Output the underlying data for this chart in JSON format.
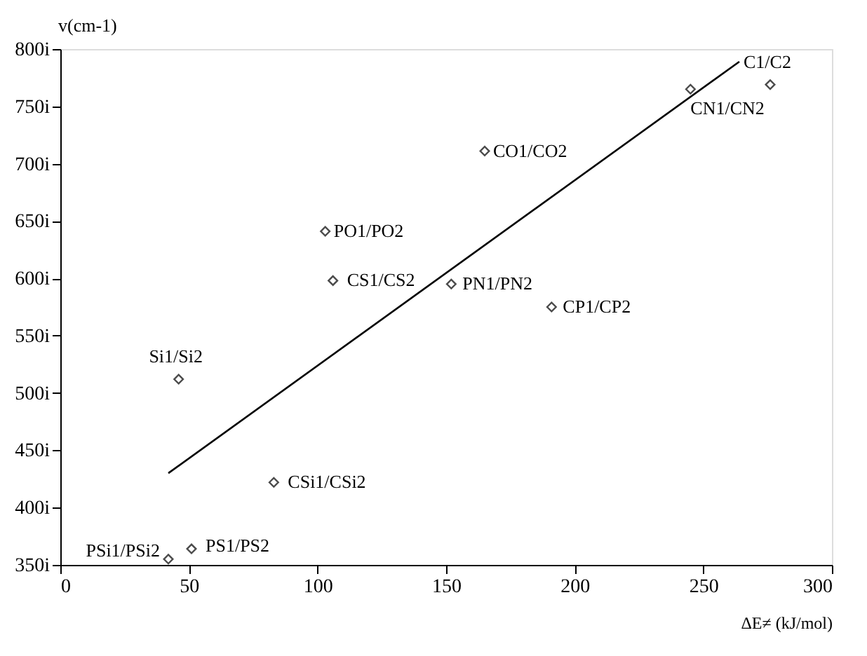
{
  "chart_data": {
    "type": "scatter",
    "xlabel": "ΔE≠ (kJ/mol)",
    "ylabel": "v(cm-1)",
    "xlim": [
      0,
      300
    ],
    "xticks": [
      0,
      50,
      100,
      150,
      200,
      250,
      300
    ],
    "ylim": [
      350,
      800
    ],
    "yticks": [
      {
        "value": 350,
        "label": "350i"
      },
      {
        "value": 400,
        "label": "400i"
      },
      {
        "value": 450,
        "label": "450i"
      },
      {
        "value": 500,
        "label": "500i"
      },
      {
        "value": 550,
        "label": "550i"
      },
      {
        "value": 600,
        "label": "600i"
      },
      {
        "value": 650,
        "label": "650i"
      },
      {
        "value": 700,
        "label": "700i"
      },
      {
        "value": 750,
        "label": "750i"
      },
      {
        "value": 800,
        "label": "800i"
      }
    ],
    "grid": false,
    "marker": "diamond",
    "series": [
      {
        "color": "#000000",
        "x": [
          103,
          106,
          165,
          245,
          276,
          152,
          191,
          46,
          83,
          42,
          51
        ],
        "values": [
          641,
          598,
          711,
          765,
          769,
          595,
          575,
          512,
          422,
          355,
          364
        ]
      },
      {
        "type": "line",
        "color": "#000000",
        "line_style": "solid",
        "marker": "none",
        "x": [
          42,
          264
        ],
        "values": [
          430,
          789
        ]
      }
    ],
    "annotations": [
      {
        "text": "PO1/PO2",
        "x": 103,
        "y": 641
      },
      {
        "text": "CS1/CS2",
        "x": 106,
        "y": 598
      },
      {
        "text": "CO1/CO2",
        "x": 165,
        "y": 711
      },
      {
        "text": "CN1/CN2",
        "x": 245,
        "y": 765
      },
      {
        "text": "C1/C2",
        "x": 276,
        "y": 769
      },
      {
        "text": "PN1/PN2",
        "x": 152,
        "y": 595
      },
      {
        "text": "CP1/CP2",
        "x": 191,
        "y": 575
      },
      {
        "text": "Si1/Si2",
        "x": 46,
        "y": 512
      },
      {
        "text": "CSi1/CSi2",
        "x": 83,
        "y": 422
      },
      {
        "text": "PSi1/PSi2",
        "x": 42,
        "y": 355
      },
      {
        "text": "PS1/PS2",
        "x": 51,
        "y": 364
      }
    ]
  }
}
